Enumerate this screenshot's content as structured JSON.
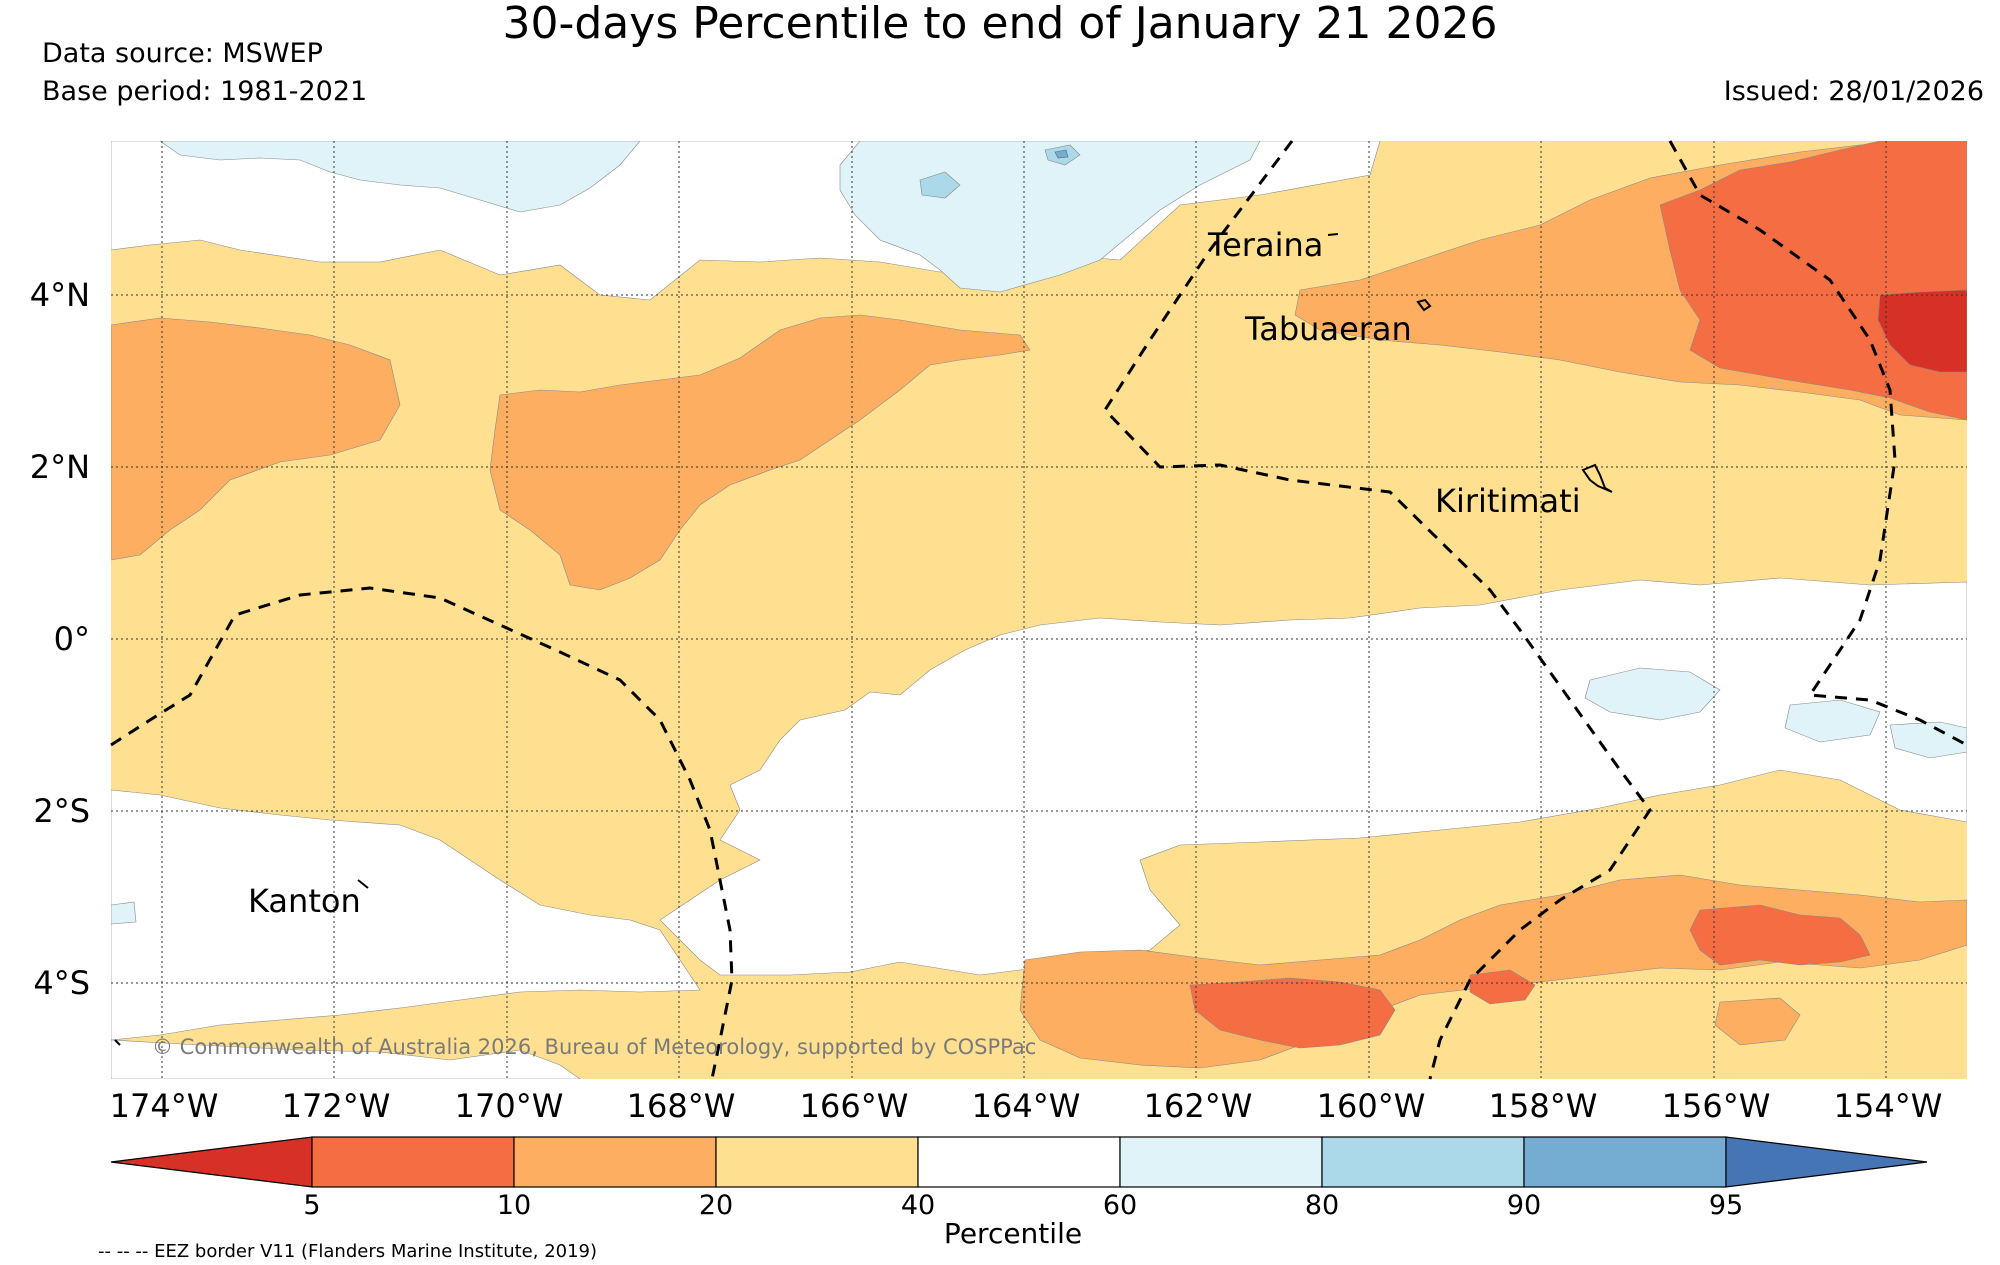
{
  "title": "30-days Percentile to end of January 21 2026",
  "data_source": "Data source: MSWEP",
  "base_period": "Base period: 1981-2021",
  "issued": "Issued: 28/01/2026",
  "credit": "© Commonwealth of Australia 2026, Bureau of Meteorology, supported by COSPPac",
  "eez_note": "-- -- -- EEZ border V11 (Flanders Marine Institute, 2019)",
  "longitude_labels": [
    "174°W",
    "172°W",
    "170°W",
    "168°W",
    "166°W",
    "164°W",
    "162°W",
    "160°W",
    "158°W",
    "156°W",
    "154°W"
  ],
  "latitude_labels": [
    "4°N",
    "2°N",
    "0°",
    "2°S",
    "4°S"
  ],
  "places": [
    {
      "name": "Teraina"
    },
    {
      "name": "Tabuaeran"
    },
    {
      "name": "Kiritimati"
    },
    {
      "name": "Kanton"
    }
  ],
  "colorbar": {
    "title": "Percentile",
    "ticks": [
      "5",
      "10",
      "20",
      "40",
      "60",
      "80",
      "90",
      "95"
    ],
    "bins": [
      {
        "range": "<5",
        "color": "#d73027"
      },
      {
        "range": "5-10",
        "color": "#f46d43"
      },
      {
        "range": "10-20",
        "color": "#fdae61"
      },
      {
        "range": "20-40",
        "color": "#fee090"
      },
      {
        "range": "40-60",
        "color": "#ffffff"
      },
      {
        "range": "60-80",
        "color": "#e0f3f8"
      },
      {
        "range": "80-90",
        "color": "#abd9e9"
      },
      {
        "range": "90-95",
        "color": "#74add1"
      },
      {
        "range": ">95",
        "color": "#4575b4"
      }
    ]
  }
}
